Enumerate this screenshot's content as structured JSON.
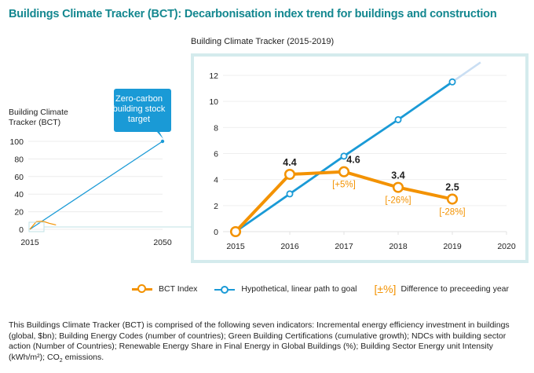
{
  "title": "Buildings Climate Tracker (BCT): Decarbonisation index trend for buildings and construction",
  "chart_data": [
    {
      "type": "line",
      "title": "",
      "ylabel": "Building Climate Tracker (BCT)",
      "xlabel": "",
      "x_ticks": [
        "2015",
        "2050"
      ],
      "y_ticks": [
        "0",
        "20",
        "40",
        "60",
        "80",
        "100"
      ],
      "xlim": [
        2015,
        2050
      ],
      "ylim": [
        0,
        100
      ],
      "grid": true,
      "series": [
        {
          "name": "Hypothetical, linear path to goal",
          "color": "#1a9ad6",
          "x": [
            2015,
            2050
          ],
          "values": [
            0,
            100
          ]
        },
        {
          "name": "BCT Index",
          "color": "#f39200",
          "x": [
            2015,
            2016,
            2017,
            2018,
            2019
          ],
          "values": [
            0,
            4.4,
            4.6,
            3.4,
            2.5
          ]
        }
      ],
      "annotations": [
        {
          "text": "Zero-carbon building stock target",
          "x": 2050,
          "y": 100
        }
      ]
    },
    {
      "type": "line",
      "title": "Building Climate Tracker (2015-2019)",
      "xlabel": "",
      "ylabel": "",
      "x_ticks": [
        "2015",
        "2016",
        "2017",
        "2018",
        "2019",
        "2020"
      ],
      "y_ticks": [
        "0",
        "2",
        "4",
        "6",
        "8",
        "10",
        "12"
      ],
      "xlim": [
        2015,
        2020
      ],
      "ylim": [
        0,
        12
      ],
      "grid": true,
      "series": [
        {
          "name": "BCT Index",
          "color": "#f39200",
          "x": [
            2015,
            2016,
            2017,
            2018,
            2019
          ],
          "values": [
            0,
            4.4,
            4.6,
            3.4,
            2.5
          ],
          "labels": [
            "",
            "4.4",
            "4.6",
            "3.4",
            "2.5"
          ],
          "change_labels": [
            "",
            "",
            "[+5%]",
            "[-26%]",
            "[-28%]"
          ]
        },
        {
          "name": "Hypothetical, linear path to goal",
          "color": "#1a9ad6",
          "x": [
            2015,
            2016,
            2017,
            2018,
            2019
          ],
          "values": [
            0,
            2.9,
            5.8,
            8.6,
            11.5
          ],
          "extension": {
            "x": [
              2019,
              2019.52
            ],
            "values": [
              11.5,
              13.0
            ],
            "color": "#c9def3"
          }
        }
      ],
      "legend_position": "bottom"
    }
  ],
  "legend": {
    "bct": "BCT Index",
    "linear": "Hypothetical, linear path to goal",
    "diff_symbol": "[±%]",
    "diff": "Difference to preceeding year"
  },
  "footnote": {
    "text": "This Buildings Climate Tracker (BCT) is comprised of the following seven indicators: Incremental energy efficiency investment in buildings (global, $bn); Building Energy Codes (number of countries); Green Building Certifications (cumulative growth); NDCs with building sector action (Number of Countries); Renewable Energy Share in Final Energy in Global Buildings (%); Building Sector Energy unit Intensity (kWh/m²); CO",
    "sub": "2",
    "tail": " emissions."
  },
  "colors": {
    "title": "#13878f",
    "orange": "#f39200",
    "blue": "#1a9ad6",
    "frame": "#d4ebed"
  }
}
